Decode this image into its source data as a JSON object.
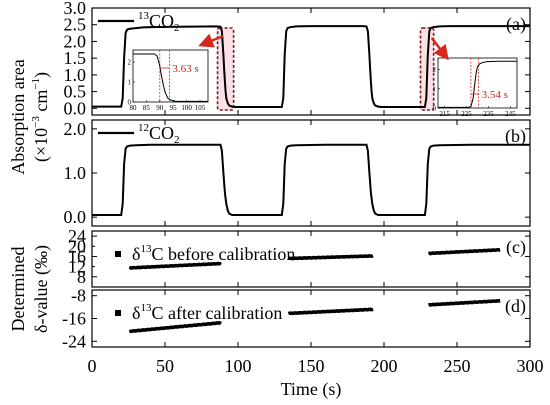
{
  "chart_data": [
    {
      "id": "a",
      "type": "line",
      "panel_label": "(a)",
      "series": [
        {
          "name": "13CO2",
          "legend_main": "CO",
          "legend_sup": "13",
          "legend_sub": "2",
          "x": [
            0,
            20,
            21,
            22,
            23,
            24,
            26,
            30,
            35,
            40,
            60,
            85,
            88,
            89,
            90,
            90.5,
            91,
            91.5,
            92,
            93,
            94,
            96,
            98,
            100,
            120,
            130,
            131,
            132,
            133,
            134,
            136,
            140,
            150,
            160,
            185,
            188,
            189,
            190,
            190.5,
            191,
            191.5,
            192,
            193,
            194,
            196,
            198,
            200,
            220,
            228,
            229,
            230,
            231,
            232,
            234,
            238,
            245,
            260,
            280,
            300
          ],
          "y": [
            0.05,
            0.05,
            0.3,
            1.5,
            2.25,
            2.35,
            2.38,
            2.4,
            2.42,
            2.43,
            2.44,
            2.45,
            2.44,
            2.3,
            1.6,
            1.2,
            0.8,
            0.5,
            0.3,
            0.15,
            0.08,
            0.05,
            0.04,
            0.04,
            0.04,
            0.04,
            0.3,
            1.6,
            2.3,
            2.4,
            2.43,
            2.45,
            2.46,
            2.46,
            2.46,
            2.45,
            2.3,
            1.6,
            1.2,
            0.8,
            0.5,
            0.3,
            0.15,
            0.08,
            0.05,
            0.04,
            0.04,
            0.04,
            0.04,
            0.3,
            1.6,
            2.3,
            2.4,
            2.43,
            2.45,
            2.46,
            2.46,
            2.46,
            2.46
          ]
        }
      ],
      "xlim": [
        0,
        300
      ],
      "ylim": [
        -0.2,
        3.0
      ],
      "yticks": [
        0.0,
        0.5,
        1.0,
        1.5,
        2.0,
        2.5,
        3.0
      ],
      "ytick_labels": [
        "0.0",
        "0.5",
        "1.0",
        "1.5",
        "2.0",
        "2.5",
        "3.0"
      ],
      "insets": [
        {
          "id": "inset-left",
          "type": "line",
          "xlim": [
            80,
            108
          ],
          "xticks": [
            80,
            85,
            90,
            95,
            100,
            105
          ],
          "xtick_labels": [
            "80",
            "85",
            "90",
            "95",
            "100",
            "105"
          ],
          "ylim": [
            0,
            2.6
          ],
          "yticks": [
            0,
            1,
            2
          ],
          "ytick_labels": [
            "0",
            "1",
            "2"
          ],
          "x": [
            80,
            88,
            89,
            90,
            90.5,
            91,
            91.5,
            92,
            92.5,
            93,
            94,
            95,
            96,
            98,
            100,
            108
          ],
          "y": [
            2.4,
            2.4,
            2.3,
            1.8,
            1.4,
            1.05,
            0.75,
            0.5,
            0.33,
            0.2,
            0.1,
            0.06,
            0.04,
            0.03,
            0.03,
            0.03
          ],
          "marker_lines_x": [
            90,
            93.6
          ],
          "annotation": "3.63 s"
        },
        {
          "id": "inset-right",
          "type": "line",
          "xlim": [
            212,
            248
          ],
          "xticks": [
            215,
            225,
            235,
            245
          ],
          "xtick_labels": [
            "215",
            "225",
            "235",
            "245"
          ],
          "ylim": [
            0,
            2.6
          ],
          "yticks": [
            0,
            1,
            2
          ],
          "ytick_labels": [
            "0",
            "1",
            "2"
          ],
          "x": [
            212,
            226,
            227,
            228,
            228.5,
            229,
            229.5,
            230,
            231,
            232,
            234,
            236,
            240,
            248
          ],
          "y": [
            0.03,
            0.03,
            0.08,
            0.5,
            1.0,
            1.5,
            1.9,
            2.15,
            2.3,
            2.35,
            2.4,
            2.42,
            2.43,
            2.43
          ],
          "marker_lines_x": [
            227,
            230.5
          ],
          "annotation": "3.54 s"
        }
      ]
    },
    {
      "id": "b",
      "type": "line",
      "panel_label": "(b)",
      "series": [
        {
          "name": "12CO2",
          "legend_main": "CO",
          "legend_sup": "12",
          "legend_sub": "2",
          "x": [
            0,
            20,
            21,
            22,
            23,
            24,
            26,
            30,
            40,
            60,
            88,
            89,
            90,
            91,
            92,
            93,
            94,
            96,
            100,
            130,
            131,
            132,
            133,
            134,
            136,
            140,
            160,
            188,
            189,
            190,
            191,
            192,
            193,
            194,
            196,
            200,
            228,
            229,
            230,
            231,
            232,
            234,
            238,
            260,
            280,
            300
          ],
          "y": [
            0.05,
            0.05,
            0.3,
            1.2,
            1.55,
            1.6,
            1.62,
            1.63,
            1.64,
            1.64,
            1.64,
            1.5,
            1.0,
            0.55,
            0.3,
            0.15,
            0.08,
            0.05,
            0.05,
            0.05,
            0.3,
            1.2,
            1.55,
            1.6,
            1.62,
            1.63,
            1.64,
            1.64,
            1.5,
            1.0,
            0.55,
            0.3,
            0.15,
            0.08,
            0.05,
            0.05,
            0.05,
            0.3,
            1.2,
            1.55,
            1.6,
            1.62,
            1.63,
            1.64,
            1.64,
            1.64
          ]
        }
      ],
      "xlim": [
        0,
        300
      ],
      "ylim": [
        -0.2,
        2.2
      ],
      "yticks": [
        0.0,
        1.0,
        2.0
      ],
      "ytick_labels": [
        "0.0",
        "1.0",
        "2.0"
      ]
    },
    {
      "id": "c",
      "type": "scatter",
      "panel_label": "(c)",
      "legend_text": "δ13C before calibration",
      "legend_pre": "δ",
      "legend_sup": "13",
      "legend_post": "C before calibration",
      "segments": [
        {
          "x_start": 26,
          "x_end": 88,
          "y_start": 11.5,
          "y_end": 13.2
        },
        {
          "x_start": 135,
          "x_end": 192,
          "y_start": 15.2,
          "y_end": 16.2
        },
        {
          "x_start": 231,
          "x_end": 279,
          "y_start": 17.2,
          "y_end": 18.6
        }
      ],
      "xlim": [
        0,
        300
      ],
      "ylim": [
        4,
        26
      ],
      "yticks": [
        8,
        16,
        24
      ],
      "ytick_labels": [
        "8",
        "16",
        "24"
      ],
      "minor_yticks": [
        12,
        20
      ],
      "minor_ytick_labels": [
        "12",
        "20"
      ]
    },
    {
      "id": "d",
      "type": "scatter",
      "panel_label": "(d)",
      "legend_text": "δ13C after calibration",
      "legend_pre": "δ",
      "legend_sup": "13",
      "legend_post": "C after calibration",
      "segments": [
        {
          "x_start": 26,
          "x_end": 88,
          "y_start": -20.5,
          "y_end": -17.5
        },
        {
          "x_start": 135,
          "x_end": 192,
          "y_start": -14.2,
          "y_end": -12.8
        },
        {
          "x_start": 231,
          "x_end": 279,
          "y_start": -11.2,
          "y_end": -9.8
        }
      ],
      "xlim": [
        0,
        300
      ],
      "ylim": [
        -26,
        -6
      ],
      "yticks": [
        -24,
        -16,
        -8
      ],
      "ytick_labels": [
        "-24",
        "-16",
        "-8"
      ]
    }
  ],
  "x_axis": {
    "xticks": [
      0,
      50,
      100,
      150,
      200,
      250,
      300
    ],
    "xtick_labels": [
      "0",
      "50",
      "100",
      "150",
      "200",
      "250",
      "300"
    ],
    "xlabel": "Time (s)"
  },
  "y_labels": {
    "top_line1": "Absorption area",
    "top_line2_pre": "(×10",
    "top_line2_sup": "−3",
    "top_line2_mid": " cm",
    "top_line2_sup2": "−1",
    "top_line2_post": ")",
    "bottom_line1": "Determined",
    "bottom_line2": "δ-value (‰)"
  },
  "colors": {
    "line": "#000000",
    "highlight_fill": "#f6c6d3",
    "highlight_border": "#7a1d14",
    "arrow": "#d6281d",
    "annotation": "#c0281d",
    "inset_marker": "#d6281d"
  }
}
